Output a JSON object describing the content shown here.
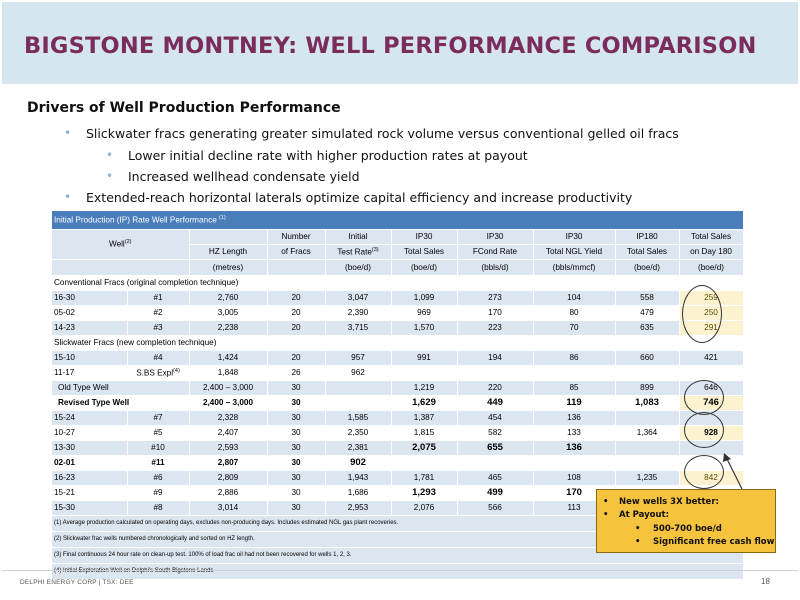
{
  "slide_title": "BIGSTONE MONTNEY: WELL PERFORMANCE COMPARISON",
  "heading": "Drivers of Well Production Performance",
  "bullets": [
    "Slickwater fracs generating greater simulated rock volume versus conventional gelled oil fracs",
    "Lower initial decline rate with higher production rates at payout",
    "Increased wellhead condensate yield",
    "Extended-reach horizontal laterals optimize capital efficiency and increase productivity"
  ],
  "table": {
    "caption": "Initial Production (IP) Rate Well Performance",
    "caption_note": "(1)",
    "well_header": "Well",
    "well_note": "(2)",
    "headers_top": [
      "",
      "Number",
      "Initial",
      "IP30",
      "IP30",
      "IP30",
      "IP180",
      "Total Sales"
    ],
    "headers_mid": [
      "HZ Length",
      "of Fracs",
      "Test Rate",
      "Total  Sales",
      "FCond Rate",
      "Total NGL Yield",
      "Total Sales",
      "on Day 180"
    ],
    "test_rate_note": "(3)",
    "units": [
      "(metres)",
      "",
      "(boe/d)",
      "(boe/d)",
      "(bbls/d)",
      "(bbls/mmcf)",
      "(boe/d)",
      "(boe/d)"
    ],
    "section_conventional": "Conventional Fracs (original completion technique)",
    "section_slickwater": "Slickwater Fracs (new completion technique)",
    "sbs_note": "(4)",
    "footnotes": [
      "(1) Average production calculated on operating days, excludes non-producing days. Includes estimated NGL gas plant recoveries.",
      "(2) Slickwater frac wells numbered chronologically and sorted on HZ length.",
      "(3) Final continuous 24 hour rate on clean-up test. 100% of load frac oil had not been recovered for wells 1, 2, 3.",
      "(4) Initial Exploration Well on Delphi's South Bigstone Lands"
    ],
    "rows": [
      {
        "loc": "16-30",
        "num": "#1",
        "len": "2,760",
        "fracs": "20",
        "test": "3,047",
        "ip30": "1,099",
        "fcond": "273",
        "ngl": "104",
        "ip180": "558",
        "total": "259"
      },
      {
        "loc": "05-02",
        "num": "#2",
        "len": "3,005",
        "fracs": "20",
        "test": "2,390",
        "ip30": "969",
        "fcond": "170",
        "ngl": "80",
        "ip180": "479",
        "total": "250"
      },
      {
        "loc": "14-23",
        "num": "#3",
        "len": "2,238",
        "fracs": "20",
        "test": "3,715",
        "ip30": "1,570",
        "fcond": "223",
        "ngl": "70",
        "ip180": "635",
        "total": "291"
      },
      {
        "loc": "15-10",
        "num": "#4",
        "len": "1,424",
        "fracs": "20",
        "test": "957",
        "ip30": "991",
        "fcond": "194",
        "ngl": "86",
        "ip180": "660",
        "total": "421"
      },
      {
        "loc": "11-17",
        "num": "S.BS Expl",
        "len": "1,848",
        "fracs": "26",
        "test": "962",
        "ip30": "",
        "fcond": "",
        "ngl": "",
        "ip180": "",
        "total": ""
      },
      {
        "loc": "Old Type Well",
        "num": "",
        "len": "2,400 – 3,000",
        "fracs": "30",
        "test": "",
        "ip30": "1,219",
        "fcond": "220",
        "ngl": "85",
        "ip180": "899",
        "total": "646"
      },
      {
        "loc": "Revised Type Well",
        "num": "",
        "len": "2,400 – 3,000",
        "fracs": "30",
        "test": "",
        "ip30": "1,629",
        "fcond": "449",
        "ngl": "119",
        "ip180": "1,083",
        "total": "746"
      },
      {
        "loc": "15-24",
        "num": "#7",
        "len": "2,328",
        "fracs": "30",
        "test": "1,585",
        "ip30": "1,387",
        "fcond": "454",
        "ngl": "136",
        "ip180": "",
        "total": ""
      },
      {
        "loc": "10-27",
        "num": "#5",
        "len": "2,407",
        "fracs": "30",
        "test": "2,350",
        "ip30": "1,815",
        "fcond": "582",
        "ngl": "133",
        "ip180": "1,364",
        "total": "928"
      },
      {
        "loc": "13-30",
        "num": "#10",
        "len": "2,593",
        "fracs": "30",
        "test": "2,381",
        "ip30": "2,075",
        "fcond": "655",
        "ngl": "136",
        "ip180": "",
        "total": ""
      },
      {
        "loc": "02-01",
        "num": "#11",
        "len": "2,807",
        "fracs": "30",
        "test": "902",
        "ip30": "",
        "fcond": "",
        "ngl": "",
        "ip180": "",
        "total": ""
      },
      {
        "loc": "16-23",
        "num": "#6",
        "len": "2,809",
        "fracs": "30",
        "test": "1,943",
        "ip30": "1,781",
        "fcond": "465",
        "ngl": "108",
        "ip180": "1,235",
        "total": "842"
      },
      {
        "loc": "15-21",
        "num": "#9",
        "len": "2,886",
        "fracs": "30",
        "test": "1,686",
        "ip30": "1,293",
        "fcond": "499",
        "ngl": "170",
        "ip180": "",
        "total": ""
      },
      {
        "loc": "15-30",
        "num": "#8",
        "len": "3,014",
        "fracs": "30",
        "test": "2,953",
        "ip30": "2,076",
        "fcond": "566",
        "ngl": "113",
        "ip180": "",
        "total": ""
      }
    ]
  },
  "callout": {
    "line1": "New wells 3X better:",
    "line2": "At Payout:",
    "line3": "500-700 boe/d",
    "line4": "Significant free cash flow"
  },
  "footer": {
    "company": "DELPHI ENERGY CORP | TSX: DEE",
    "page": "18"
  },
  "colors": {
    "title": "#7a2d5a",
    "title_band": "#d6e6f0",
    "table_header": "#4a7ebb",
    "table_row": "#dce6f1",
    "highlight": "#fdf2d0",
    "callout": "#f6c33e"
  }
}
